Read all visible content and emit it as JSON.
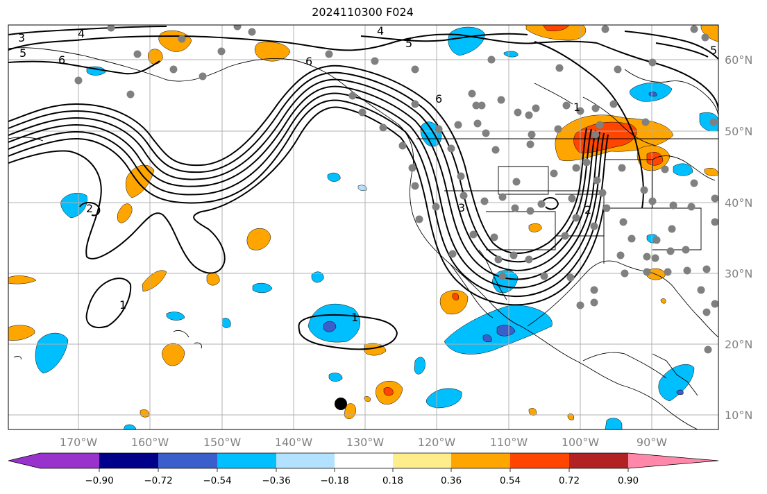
{
  "title": "2024110300 F024",
  "map": {
    "projection": "PlateCarree",
    "lon_range": [
      -180,
      -80
    ],
    "lat_range": [
      8,
      65
    ],
    "lon_ticks": [
      {
        "value": -170,
        "label": "170°W"
      },
      {
        "value": -160,
        "label": "160°W"
      },
      {
        "value": -150,
        "label": "150°W"
      },
      {
        "value": -140,
        "label": "140°W"
      },
      {
        "value": -130,
        "label": "130°W"
      },
      {
        "value": -120,
        "label": "120°W"
      },
      {
        "value": -110,
        "label": "110°W"
      },
      {
        "value": -100,
        "label": "100°W"
      },
      {
        "value": -90,
        "label": "90°W"
      }
    ],
    "lat_ticks": [
      {
        "value": 60,
        "label": "60°N"
      },
      {
        "value": 50,
        "label": "50°N"
      },
      {
        "value": 40,
        "label": "40°N"
      },
      {
        "value": 30,
        "label": "30°N"
      },
      {
        "value": 20,
        "label": "20°N"
      },
      {
        "value": 10,
        "label": "10°N"
      }
    ],
    "contour_labels": [
      "3",
      "5",
      "6",
      "5",
      "4",
      "6",
      "6",
      "2",
      "3",
      "1",
      "1",
      "5",
      "4",
      "2",
      "1"
    ],
    "marked_point": {
      "lon": -134,
      "lat": 11.5
    }
  },
  "colorbar": {
    "colors": [
      "#9932CC",
      "#00008B",
      "#3A5FCD",
      "#00BFFF",
      "#B2E2FF",
      "#FFFFFF",
      "#FFEC8B",
      "#FFA500",
      "#FF4500",
      "#B22222",
      "#FF88AA"
    ],
    "tick_labels": [
      "−0.90",
      "−0.72",
      "−0.54",
      "−0.36",
      "−0.18",
      "0.18",
      "0.36",
      "0.54",
      "0.72",
      "0.90"
    ]
  }
}
